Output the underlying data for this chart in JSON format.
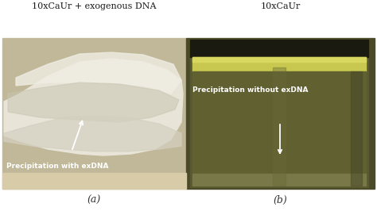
{
  "title_left": "10xCaUr + exogenous DNA",
  "title_right": "10xCaUr",
  "label_left": "Precipitation with exDNA",
  "label_right": "Precipitation without exDNA",
  "sublabel_left": "(a)",
  "sublabel_right": "(b)",
  "bg_color": "#ffffff",
  "text_color_titles": "#1a1a1a",
  "text_color_labels": "#ffffff",
  "text_color_sublabels": "#333333",
  "left_bg": "#c0b898",
  "left_beaker_body": "#bdb090",
  "left_beaker_bottom": "#c8bc98",
  "left_precipitate_main": "#e8e4d8",
  "left_precipitate_dark": "#c8c4b0",
  "left_precipitate_light": "#f0ede4",
  "right_bg": "#4a4a28",
  "right_jar_body": "#5a5a30",
  "right_liquid_top": "#c8c850",
  "right_liquid_mid": "#a0a038",
  "right_liquid_dark": "#606030",
  "right_cap": "#1a1a10",
  "arrow_color": "#ffffff",
  "fig_width": 4.74,
  "fig_height": 2.66,
  "dpi": 100
}
